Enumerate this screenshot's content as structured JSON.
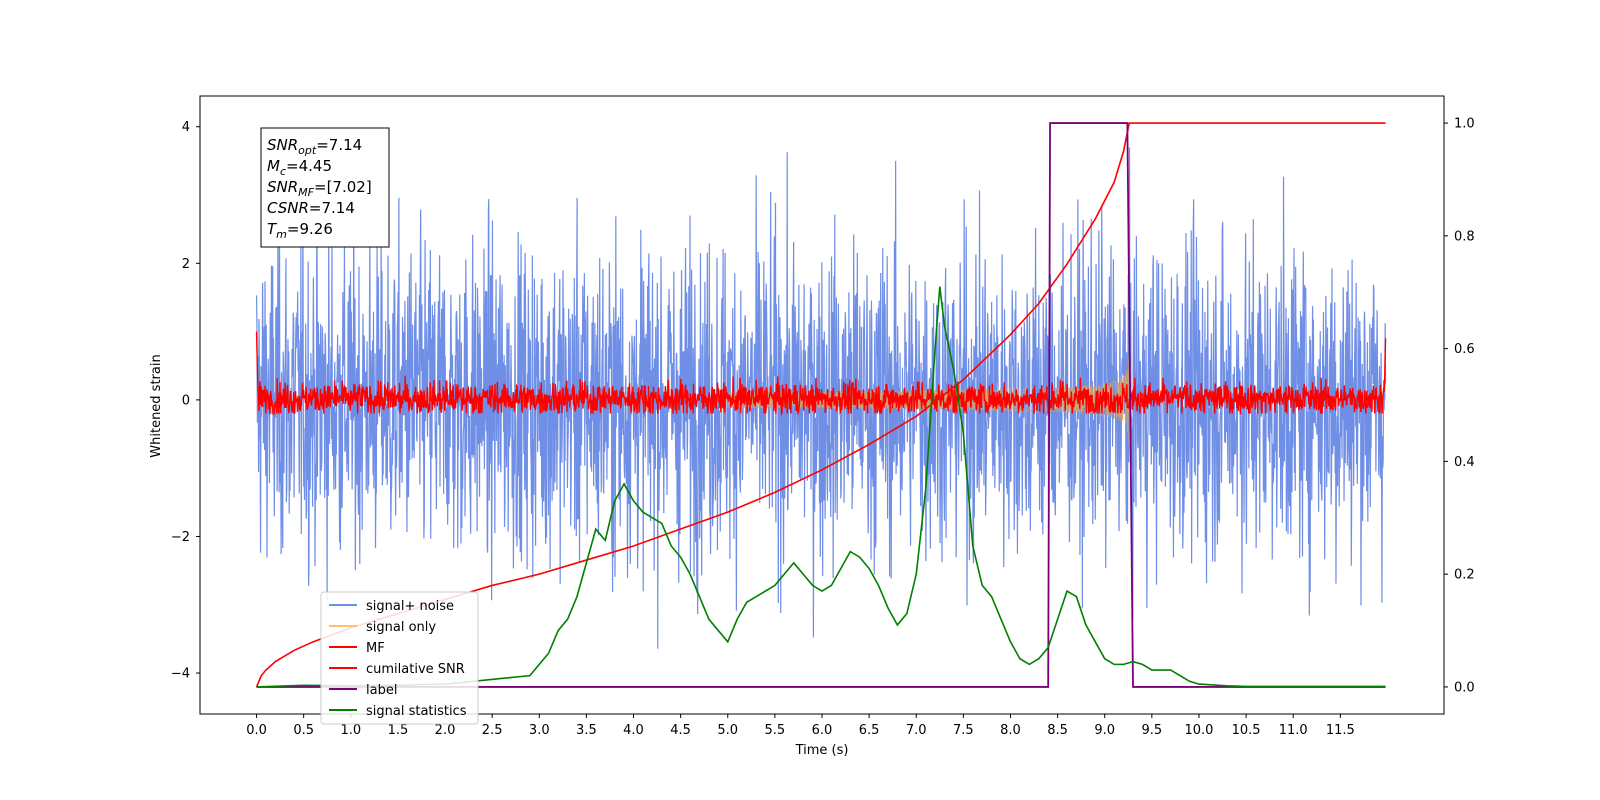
{
  "chart_data": {
    "type": "line",
    "title": "",
    "xlabel": "Time (s)",
    "ylabel": "Whitened strain",
    "xlim": [
      -0.6,
      12.6
    ],
    "ylim": [
      -4.6,
      4.45
    ],
    "y2lim": [
      -0.048,
      1.048
    ],
    "grid": false,
    "x_ticks": [
      0.0,
      0.5,
      1.0,
      1.5,
      2.0,
      2.5,
      3.0,
      3.5,
      4.0,
      4.5,
      5.0,
      5.5,
      6.0,
      6.5,
      7.0,
      7.5,
      8.0,
      8.5,
      9.0,
      9.5,
      10.0,
      10.5,
      11.0,
      11.5
    ],
    "x_tick_labels": [
      "0.0",
      "0.5",
      "1.0",
      "1.5",
      "2.0",
      "2.5",
      "3.0",
      "3.5",
      "4.0",
      "4.5",
      "5.0",
      "5.5",
      "6.0",
      "6.5",
      "7.0",
      "7.5",
      "8.0",
      "8.5",
      "9.0",
      "9.5",
      "10.0",
      "10.5",
      "11.0",
      "11.5"
    ],
    "y_ticks": [
      -4,
      -2,
      0,
      2,
      4
    ],
    "y_tick_labels": [
      "−4",
      "−2",
      "0",
      "2",
      "4"
    ],
    "y2_ticks": [
      0.0,
      0.2,
      0.4,
      0.6,
      0.8,
      1.0
    ],
    "y2_tick_labels": [
      "0.0",
      "0.2",
      "0.4",
      "0.6",
      "0.8",
      "1.0"
    ],
    "legend": {
      "placement": "lower-left",
      "entries": [
        {
          "label": "signal+ noise",
          "color": "#6f8ee6"
        },
        {
          "label": "signal only",
          "color": "#ffbf70"
        },
        {
          "label": "MF",
          "color": "#ff0000"
        },
        {
          "label": "cumilative SNR",
          "color": "#ff0000"
        },
        {
          "label": "label",
          "color": "#7a007a"
        },
        {
          "label": "signal statistics",
          "color": "#008000"
        }
      ]
    },
    "annotation_lines": [
      {
        "sym": "SNR",
        "sub": "opt",
        "val": "=7.14"
      },
      {
        "sym": "M",
        "sub": "c",
        "val": "=4.45"
      },
      {
        "sym": "SNR",
        "sub": "MF",
        "val": "=[7.02]"
      },
      {
        "sym": "CSNR",
        "sub": "",
        "val": "=7.14"
      },
      {
        "sym": "T",
        "sub": "m",
        "val": "=9.26"
      }
    ],
    "series": [
      {
        "name": "signal+ noise",
        "color": "#6f8ee6",
        "axis": "left",
        "kind": "noise",
        "t_start": 0.0,
        "t_end": 11.98,
        "amplitude_sd": 1.15,
        "range": [
          -4.1,
          4.05
        ]
      },
      {
        "name": "signal only",
        "color": "#d4a06a",
        "axis": "left",
        "kind": "chirp",
        "t_start": 5.0,
        "t_end": 9.26,
        "peak_amplitude": 0.65
      },
      {
        "name": "MF",
        "color": "#ff0000",
        "axis": "left",
        "kind": "noise",
        "t_start": 0.0,
        "t_end": 11.98,
        "amplitude_sd": 0.12,
        "range": [
          -0.2,
          1.0
        ]
      },
      {
        "name": "cumilative SNR",
        "color": "#ff0000",
        "axis": "right",
        "x": [
          0.0,
          0.05,
          0.1,
          0.2,
          0.4,
          0.6,
          1.0,
          1.5,
          2.0,
          2.5,
          3.0,
          3.5,
          4.0,
          4.5,
          5.0,
          5.5,
          6.0,
          6.5,
          7.0,
          7.5,
          8.0,
          8.3,
          8.6,
          8.9,
          9.1,
          9.2,
          9.26,
          11.98
        ],
        "y": [
          0.0,
          0.02,
          0.03,
          0.045,
          0.065,
          0.08,
          0.105,
          0.13,
          0.155,
          0.18,
          0.2,
          0.225,
          0.25,
          0.28,
          0.31,
          0.345,
          0.385,
          0.43,
          0.48,
          0.545,
          0.625,
          0.68,
          0.75,
          0.83,
          0.895,
          0.95,
          1.0,
          1.0
        ]
      },
      {
        "name": "label",
        "color": "#7a007a",
        "axis": "right",
        "x": [
          0.0,
          8.4,
          8.42,
          9.24,
          9.3,
          11.98
        ],
        "y": [
          0.0,
          0.0,
          1.0,
          1.0,
          0.0,
          0.0
        ]
      },
      {
        "name": "signal statistics",
        "color": "#008000",
        "axis": "right",
        "x": [
          0.0,
          0.5,
          1.0,
          1.5,
          2.0,
          2.3,
          2.6,
          2.9,
          3.0,
          3.1,
          3.2,
          3.3,
          3.4,
          3.5,
          3.6,
          3.7,
          3.8,
          3.9,
          4.0,
          4.1,
          4.2,
          4.3,
          4.4,
          4.5,
          4.6,
          4.7,
          4.8,
          4.9,
          5.0,
          5.1,
          5.2,
          5.3,
          5.4,
          5.5,
          5.6,
          5.7,
          5.8,
          5.9,
          6.0,
          6.1,
          6.2,
          6.3,
          6.4,
          6.5,
          6.6,
          6.7,
          6.8,
          6.9,
          7.0,
          7.1,
          7.2,
          7.25,
          7.3,
          7.4,
          7.5,
          7.6,
          7.7,
          7.8,
          7.9,
          8.0,
          8.1,
          8.2,
          8.3,
          8.4,
          8.5,
          8.6,
          8.7,
          8.8,
          8.9,
          9.0,
          9.1,
          9.2,
          9.3,
          9.4,
          9.5,
          9.6,
          9.7,
          9.8,
          9.9,
          10.0,
          10.3,
          10.5,
          11.0,
          11.5,
          11.98
        ],
        "y": [
          0.0,
          0.003,
          0.002,
          0.003,
          0.005,
          0.01,
          0.015,
          0.02,
          0.04,
          0.06,
          0.1,
          0.12,
          0.16,
          0.22,
          0.28,
          0.26,
          0.33,
          0.36,
          0.33,
          0.31,
          0.3,
          0.29,
          0.25,
          0.23,
          0.2,
          0.16,
          0.12,
          0.1,
          0.08,
          0.12,
          0.15,
          0.16,
          0.17,
          0.18,
          0.2,
          0.22,
          0.2,
          0.18,
          0.17,
          0.18,
          0.21,
          0.24,
          0.23,
          0.21,
          0.18,
          0.14,
          0.11,
          0.13,
          0.2,
          0.35,
          0.6,
          0.71,
          0.64,
          0.56,
          0.45,
          0.25,
          0.18,
          0.16,
          0.12,
          0.08,
          0.05,
          0.04,
          0.05,
          0.07,
          0.12,
          0.17,
          0.16,
          0.11,
          0.08,
          0.05,
          0.04,
          0.04,
          0.045,
          0.04,
          0.03,
          0.03,
          0.03,
          0.02,
          0.01,
          0.005,
          0.002,
          0.001,
          0.001,
          0.001,
          0.001
        ]
      }
    ]
  }
}
